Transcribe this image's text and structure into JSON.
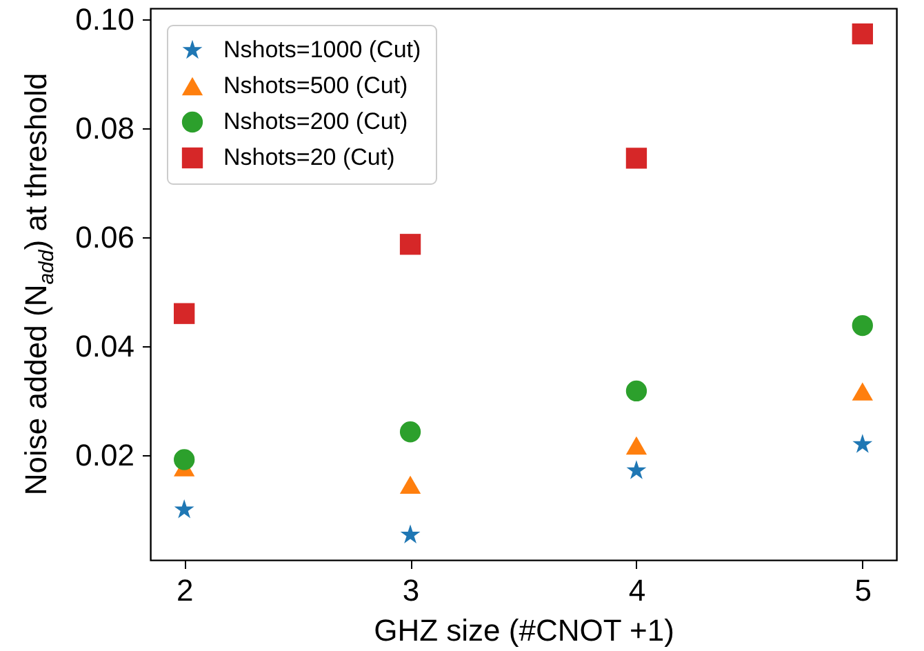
{
  "chart_data": {
    "type": "scatter",
    "xlabel": "GHZ size (#CNOT +1)",
    "ylabel": "Noise added (N$_{add}$) at threshold",
    "x": [
      2,
      3,
      4,
      5
    ],
    "series": [
      {
        "name": "Nshots=1000 (Cut)",
        "color": "#1f77b4",
        "marker": "star",
        "values": [
          0.01,
          0.0054,
          0.0172,
          0.022
        ]
      },
      {
        "name": "Nshots=500 (Cut)",
        "color": "#ff7f0e",
        "marker": "triangle",
        "values": [
          0.0178,
          0.0146,
          0.0218,
          0.0317
        ]
      },
      {
        "name": "Nshots=200 (Cut)",
        "color": "#2ca02c",
        "marker": "circle",
        "values": [
          0.0192,
          0.0243,
          0.0318,
          0.0438
        ]
      },
      {
        "name": "Nshots=20 (Cut)",
        "color": "#d62728",
        "marker": "square",
        "values": [
          0.046,
          0.0587,
          0.0745,
          0.0973
        ]
      }
    ],
    "xlim": [
      1.85,
      5.15
    ],
    "xticks": [
      2,
      3,
      4,
      5
    ],
    "ylim": [
      0.0008,
      0.102
    ],
    "yticks": [
      0.02,
      0.04,
      0.06,
      0.08,
      {
        "value": 0.1,
        "label": "0.10"
      }
    ],
    "grid": false,
    "legend": "top left"
  }
}
